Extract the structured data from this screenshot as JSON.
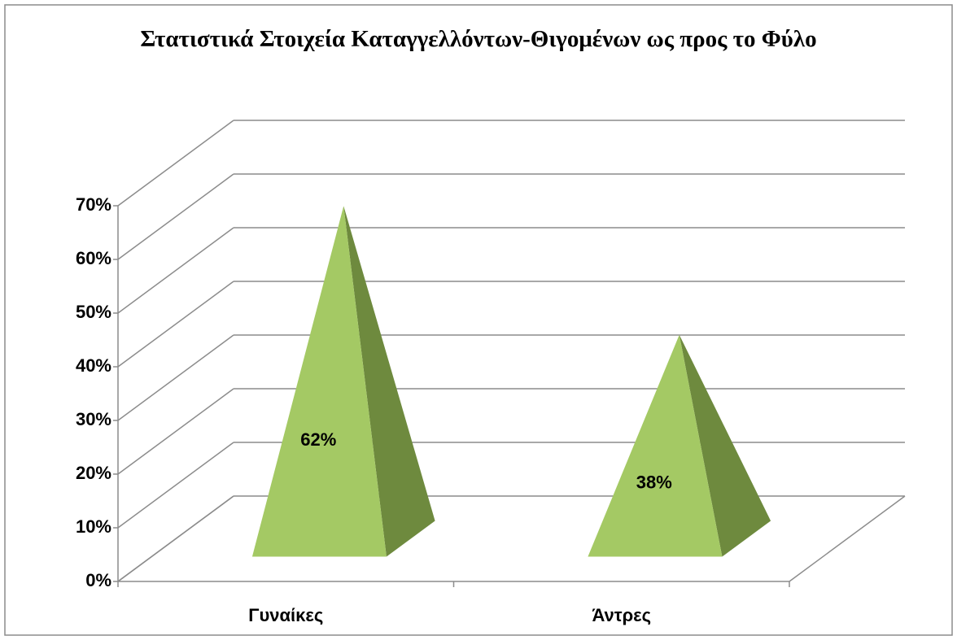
{
  "chart_data": {
    "type": "pyramid3d",
    "title": "Στατιστικά Στοιχεία Καταγγελλόντων-Θιγομένων ως προς το Φύλο",
    "categories": [
      "Γυναίκες",
      "Άντρες"
    ],
    "values": [
      62,
      38
    ],
    "value_labels": [
      "62%",
      "38%"
    ],
    "color": "#a4c964",
    "ylim": [
      0,
      70
    ],
    "yticks": [
      {
        "value": 0,
        "label": "0%"
      },
      {
        "value": 10,
        "label": "10%"
      },
      {
        "value": 20,
        "label": "20%"
      },
      {
        "value": 30,
        "label": "30%"
      },
      {
        "value": 40,
        "label": "40%"
      },
      {
        "value": 50,
        "label": "50%"
      },
      {
        "value": 60,
        "label": "60%"
      },
      {
        "value": 70,
        "label": "70%"
      }
    ],
    "grid": true
  }
}
